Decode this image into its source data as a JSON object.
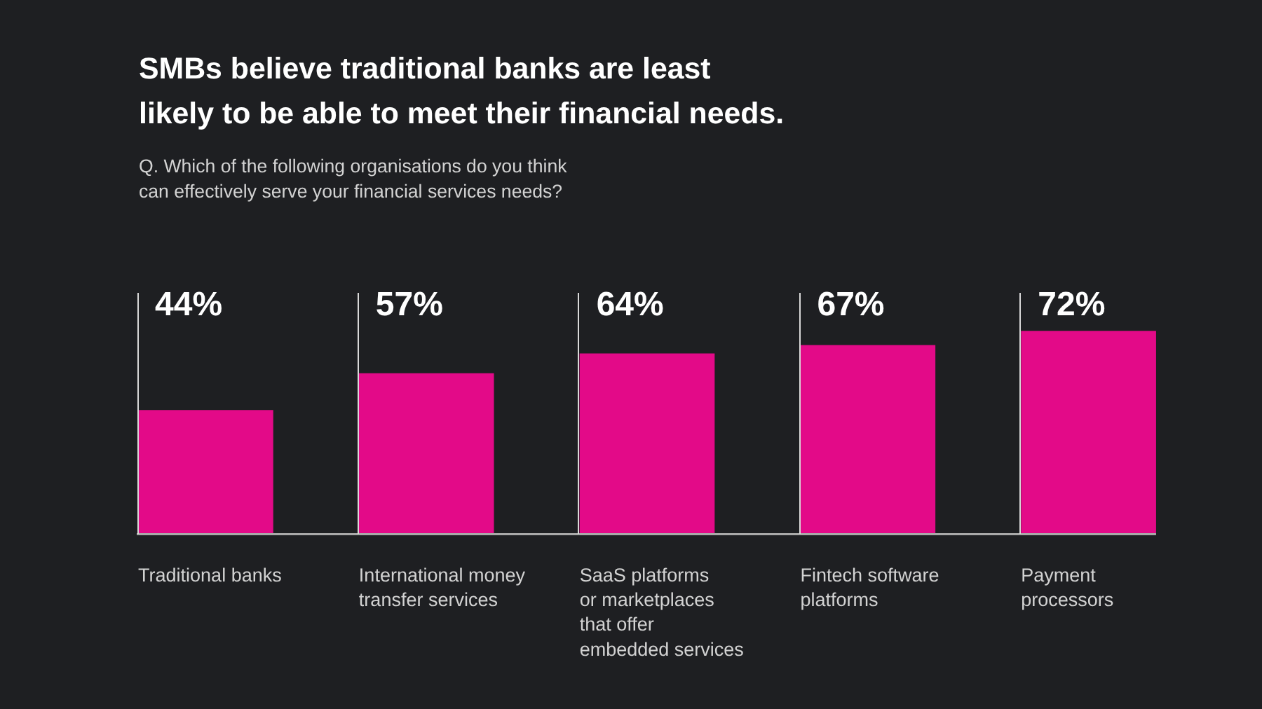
{
  "chart_data": {
    "type": "bar",
    "title": "SMBs believe traditional banks are least\nlikely to be able to meet their financial needs.",
    "subtitle": "Q. Which of the following organisations do you think\ncan effectively serve your financial services needs?",
    "categories": [
      "Traditional banks",
      "International money\ntransfer services",
      "SaaS platforms\nor marketplaces\nthat offer\nembedded services",
      "Fintech software\nplatforms",
      "Payment\nprocessors"
    ],
    "values": [
      44,
      57,
      64,
      67,
      72
    ],
    "value_labels": [
      "44%",
      "57%",
      "64%",
      "67%",
      "72%"
    ],
    "color": "#e30a88",
    "tick_labels": "x"
  }
}
